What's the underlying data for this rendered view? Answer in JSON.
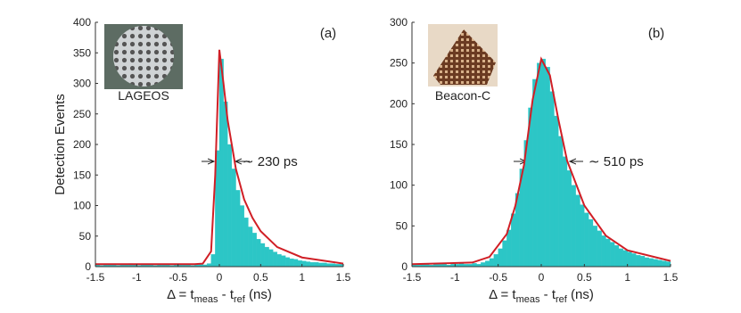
{
  "chart_data": [
    {
      "type": "histogram",
      "panel_label": "(a)",
      "image_label": "LAGEOS",
      "width_label": "∼ 230 ps",
      "ylabel": "Detection Events",
      "xlabel": [
        "Δ = t",
        "meas",
        " - t",
        "ref",
        " (ns)"
      ],
      "color": "#2cc6c6",
      "fit_color": "#d01f26",
      "bins": [
        -1.5,
        -1.45,
        -1.4,
        -1.35,
        -1.3,
        -1.25,
        -1.2,
        -1.15,
        -1.1,
        -1.05,
        -1.0,
        -0.95,
        -0.9,
        -0.85,
        -0.8,
        -0.75,
        -0.7,
        -0.65,
        -0.6,
        -0.55,
        -0.5,
        -0.45,
        -0.4,
        -0.35,
        -0.3,
        -0.25,
        -0.2,
        -0.15,
        -0.1,
        -0.05,
        0,
        0.05,
        0.1,
        0.15,
        0.2,
        0.25,
        0.3,
        0.35,
        0.4,
        0.45,
        0.5,
        0.55,
        0.6,
        0.65,
        0.7,
        0.75,
        0.8,
        0.85,
        0.9,
        0.95,
        1.0,
        1.05,
        1.1,
        1.15,
        1.2,
        1.25,
        1.3,
        1.35,
        1.4,
        1.45,
        1.5
      ],
      "values": [
        3,
        2,
        4,
        3,
        3,
        2,
        4,
        3,
        5,
        3,
        2,
        4,
        3,
        3,
        2,
        3,
        4,
        3,
        2,
        3,
        3,
        4,
        3,
        2,
        3,
        4,
        3,
        5,
        20,
        190,
        340,
        270,
        200,
        160,
        125,
        100,
        80,
        65,
        55,
        45,
        38,
        32,
        28,
        24,
        20,
        18,
        15,
        13,
        12,
        10,
        9,
        8,
        7,
        7,
        6,
        6,
        5,
        5,
        4,
        4
      ],
      "fit_x": [
        -1.5,
        -0.3,
        -0.2,
        -0.1,
        -0.05,
        0,
        0.05,
        0.1,
        0.2,
        0.3,
        0.4,
        0.5,
        0.7,
        1,
        1.5
      ],
      "fit_values": [
        4,
        4,
        5,
        25,
        150,
        355,
        300,
        240,
        160,
        110,
        80,
        58,
        32,
        15,
        5
      ],
      "xlim": [
        -1.5,
        1.5
      ],
      "xticks": [
        -1.5,
        -1,
        -0.5,
        0,
        0.5,
        1,
        1.5
      ],
      "ylim": [
        0,
        400
      ],
      "yticks": [
        0,
        50,
        100,
        150,
        200,
        250,
        300,
        350,
        400
      ]
    },
    {
      "type": "histogram",
      "panel_label": "(b)",
      "image_label": "Beacon-C",
      "width_label": "∼ 510 ps",
      "xlabel": [
        "Δ = t",
        "meas",
        " - t",
        "ref",
        " (ns)"
      ],
      "color": "#2cc6c6",
      "fit_color": "#d01f26",
      "bins": [
        -1.5,
        -1.45,
        -1.4,
        -1.35,
        -1.3,
        -1.25,
        -1.2,
        -1.15,
        -1.1,
        -1.05,
        -1.0,
        -0.95,
        -0.9,
        -0.85,
        -0.8,
        -0.75,
        -0.7,
        -0.65,
        -0.6,
        -0.55,
        -0.5,
        -0.45,
        -0.4,
        -0.35,
        -0.3,
        -0.25,
        -0.2,
        -0.15,
        -0.1,
        -0.05,
        0,
        0.05,
        0.1,
        0.15,
        0.2,
        0.25,
        0.3,
        0.35,
        0.4,
        0.45,
        0.5,
        0.55,
        0.6,
        0.65,
        0.7,
        0.75,
        0.8,
        0.85,
        0.9,
        0.95,
        1.0,
        1.05,
        1.1,
        1.15,
        1.2,
        1.25,
        1.3,
        1.35,
        1.4,
        1.45,
        1.5
      ],
      "values": [
        3,
        2,
        3,
        4,
        2,
        3,
        3,
        4,
        2,
        3,
        3,
        4,
        3,
        3,
        4,
        3,
        5,
        7,
        10,
        15,
        22,
        32,
        45,
        65,
        90,
        120,
        155,
        195,
        230,
        250,
        255,
        245,
        215,
        185,
        160,
        135,
        118,
        100,
        88,
        76,
        66,
        58,
        50,
        44,
        38,
        34,
        30,
        26,
        22,
        20,
        18,
        16,
        14,
        13,
        11,
        10,
        9,
        8,
        7,
        6
      ],
      "fit_x": [
        -1.5,
        -0.8,
        -0.6,
        -0.4,
        -0.3,
        -0.2,
        -0.1,
        0,
        0.1,
        0.2,
        0.3,
        0.5,
        0.75,
        1,
        1.5
      ],
      "fit_values": [
        3,
        5,
        12,
        40,
        75,
        125,
        205,
        255,
        235,
        180,
        130,
        75,
        38,
        20,
        7
      ],
      "xlim": [
        -1.5,
        1.5
      ],
      "xticks": [
        -1.5,
        -1,
        -0.5,
        0,
        0.5,
        1,
        1.5
      ],
      "ylim": [
        0,
        300
      ],
      "yticks": [
        0,
        50,
        100,
        150,
        200,
        250,
        300
      ]
    }
  ]
}
